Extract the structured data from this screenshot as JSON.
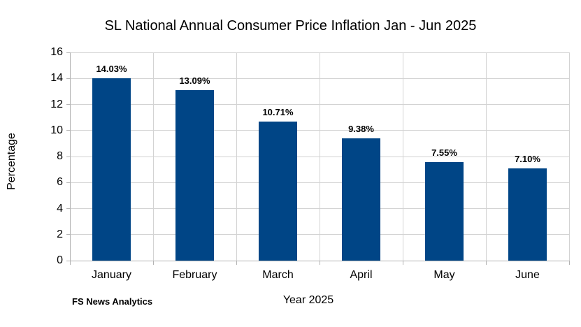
{
  "title": "SL National Annual Consumer Price Inflation Jan - Jun 2025",
  "footer": {
    "credit": "FS News Analytics"
  },
  "chart_data": {
    "type": "bar",
    "title": "SL National Annual Consumer Price Inflation Jan - Jun 2025",
    "categories": [
      "January",
      "February",
      "March",
      "April",
      "May",
      "June"
    ],
    "values": [
      14.03,
      13.09,
      10.71,
      9.38,
      7.55,
      7.1
    ],
    "data_labels": [
      "14.03%",
      "13.09%",
      "10.71%",
      "9.38%",
      "7.55%",
      "7.10%"
    ],
    "xlabel": "Year 2025",
    "ylabel": "Percentage",
    "ylim": [
      0,
      16
    ],
    "yticks": [
      0,
      2,
      4,
      6,
      8,
      10,
      12,
      14,
      16
    ],
    "grid": true,
    "legend_position": "none",
    "bar_color": "#004586",
    "grid_color": "#d3d3d3",
    "axis_color": "#b3b3b3",
    "background_color": "#ffffff"
  }
}
